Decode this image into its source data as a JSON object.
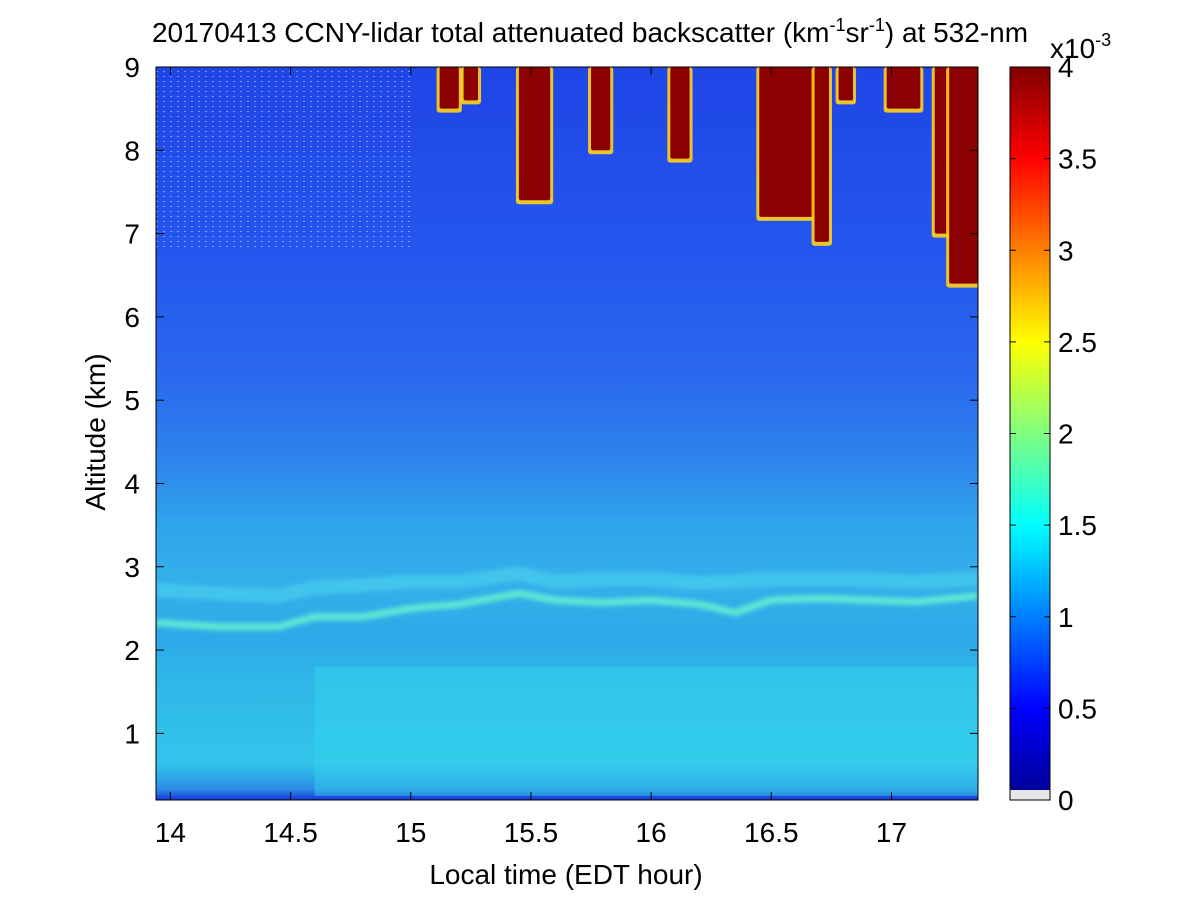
{
  "chart_data": {
    "type": "heatmap",
    "title": {
      "prefix": "20170413 CCNY-lidar total attenuated backscatter (km",
      "exp1": "-1",
      "middle": "sr",
      "exp2": "-1",
      "suffix": ") at 532-nm"
    },
    "xlabel": "Local time (EDT hour)",
    "ylabel": "Altitude (km)",
    "xlim": [
      13.94,
      17.36
    ],
    "ylim": [
      0.2,
      9.0
    ],
    "x_ticks": [
      "14",
      "14.5",
      "15",
      "15.5",
      "16",
      "16.5",
      "17"
    ],
    "x_tick_values": [
      14,
      14.5,
      15,
      15.5,
      16,
      16.5,
      17
    ],
    "y_ticks": [
      "1",
      "2",
      "3",
      "4",
      "5",
      "6",
      "7",
      "8",
      "9"
    ],
    "y_tick_values": [
      1,
      2,
      3,
      4,
      5,
      6,
      7,
      8,
      9
    ],
    "colorbar": {
      "min": 0,
      "max": 4,
      "scale_label_base": "x10",
      "scale_label_exp": "-3",
      "ticks": [
        "0",
        "0.5",
        "1",
        "1.5",
        "2",
        "2.5",
        "3",
        "3.5",
        "4"
      ],
      "tick_values": [
        0,
        0.5,
        1,
        1.5,
        2,
        2.5,
        3,
        3.5,
        4
      ],
      "colormap": "jet"
    },
    "features": {
      "layer_lower": [
        [
          13.94,
          2.33
        ],
        [
          14.2,
          2.28
        ],
        [
          14.45,
          2.28
        ],
        [
          14.6,
          2.4
        ],
        [
          14.8,
          2.4
        ],
        [
          15.0,
          2.5
        ],
        [
          15.2,
          2.55
        ],
        [
          15.45,
          2.68
        ],
        [
          15.6,
          2.6
        ],
        [
          15.8,
          2.57
        ],
        [
          16.0,
          2.6
        ],
        [
          16.2,
          2.55
        ],
        [
          16.35,
          2.45
        ],
        [
          16.5,
          2.6
        ],
        [
          16.7,
          2.62
        ],
        [
          16.9,
          2.6
        ],
        [
          17.1,
          2.58
        ],
        [
          17.36,
          2.65
        ]
      ],
      "layer_upper": [
        [
          13.94,
          2.72
        ],
        [
          14.2,
          2.68
        ],
        [
          14.45,
          2.65
        ],
        [
          14.6,
          2.75
        ],
        [
          14.8,
          2.78
        ],
        [
          15.0,
          2.82
        ],
        [
          15.2,
          2.82
        ],
        [
          15.45,
          2.92
        ],
        [
          15.6,
          2.82
        ],
        [
          15.8,
          2.85
        ],
        [
          16.0,
          2.85
        ],
        [
          16.2,
          2.8
        ],
        [
          16.5,
          2.85
        ],
        [
          16.8,
          2.85
        ],
        [
          17.1,
          2.82
        ],
        [
          17.36,
          2.85
        ]
      ],
      "clouds": [
        {
          "x0": 15.12,
          "x1": 15.2,
          "bottom": 8.5
        },
        {
          "x0": 15.22,
          "x1": 15.28,
          "bottom": 8.6
        },
        {
          "x0": 15.45,
          "x1": 15.58,
          "bottom": 7.4
        },
        {
          "x0": 15.75,
          "x1": 15.83,
          "bottom": 8.0
        },
        {
          "x0": 16.08,
          "x1": 16.16,
          "bottom": 7.9
        },
        {
          "x0": 16.45,
          "x1": 16.68,
          "bottom": 7.2
        },
        {
          "x0": 16.68,
          "x1": 16.74,
          "bottom": 6.9
        },
        {
          "x0": 16.78,
          "x1": 16.84,
          "bottom": 8.6
        },
        {
          "x0": 16.98,
          "x1": 17.12,
          "bottom": 8.5
        },
        {
          "x0": 17.18,
          "x1": 17.24,
          "bottom": 7.0
        },
        {
          "x0": 17.24,
          "x1": 17.36,
          "bottom": 6.4
        }
      ]
    }
  }
}
